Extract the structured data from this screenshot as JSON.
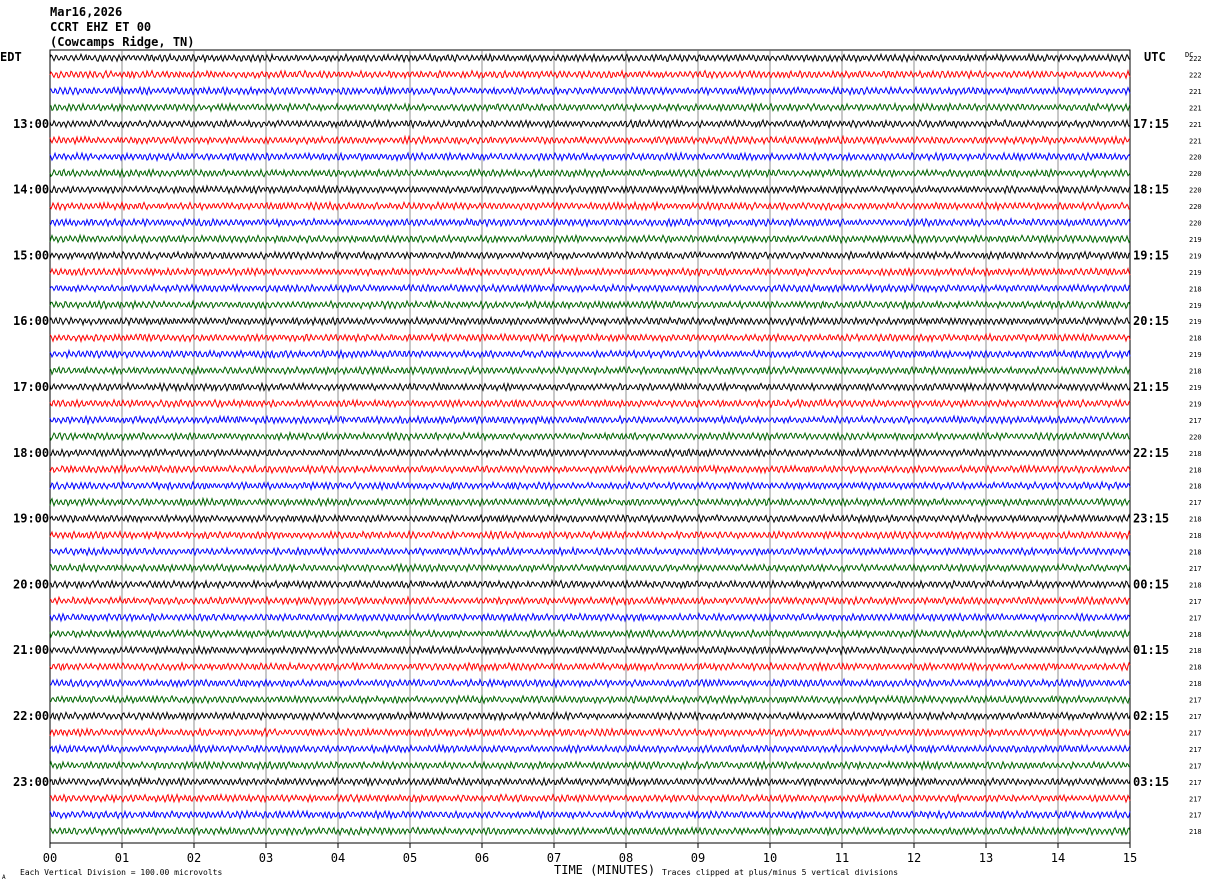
{
  "header": {
    "date": "Mar16,2026",
    "station": "CCRT EHZ ET 00",
    "location": "(Cowcamps Ridge, TN)"
  },
  "left_zone_label": "EDT",
  "right_zone_label": "UTC",
  "dc_header": "DC",
  "footer": {
    "scale_note": "Each Vertical Division =  100.00 microvolts",
    "clip_note": "Traces clipped at plus/minus 5 vertical divisions",
    "corner_mark": "A"
  },
  "chart_data": {
    "type": "line",
    "title": "",
    "xlabel": "TIME (MINUTES)",
    "ylabel": "",
    "xlim": [
      0,
      15
    ],
    "x_ticks": [
      "00",
      "01",
      "02",
      "03",
      "04",
      "05",
      "06",
      "07",
      "08",
      "09",
      "10",
      "11",
      "12",
      "13",
      "14",
      "15"
    ],
    "grid": true,
    "trace_colors": [
      "#000000",
      "#ff0000",
      "#0000ff",
      "#006400"
    ],
    "left_hour_labels": [
      "13:00",
      "14:00",
      "15:00",
      "16:00",
      "17:00",
      "18:00",
      "19:00",
      "20:00",
      "21:00",
      "22:00",
      "23:00"
    ],
    "right_hour_labels": [
      "17:15",
      "18:15",
      "19:15",
      "20:15",
      "21:15",
      "22:15",
      "23:15",
      "00:15",
      "01:15",
      "02:15",
      "03:15"
    ],
    "dc_offsets": [
      222,
      222,
      221,
      221,
      221,
      221,
      220,
      220,
      220,
      220,
      220,
      219,
      219,
      219,
      218,
      219,
      219,
      218,
      219,
      218,
      219,
      219,
      217,
      220,
      218,
      218,
      218,
      217,
      218,
      218,
      218,
      217,
      218,
      217,
      217,
      218,
      218,
      218,
      218,
      217,
      217,
      217,
      217,
      217,
      217,
      217,
      217,
      218
    ]
  }
}
